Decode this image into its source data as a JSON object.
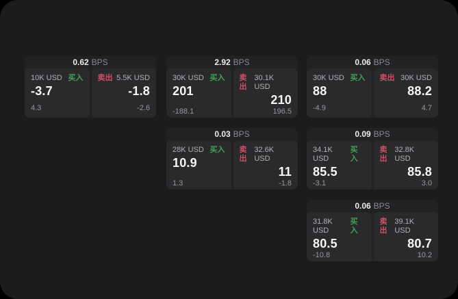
{
  "labels": {
    "bps": "BPS",
    "buy": "买入",
    "sell": "卖出"
  },
  "colors": {
    "outer_background": "#000000",
    "panel_background": "#1c1c1e",
    "card_background": "#222224",
    "tile_background": "#2a2a2c",
    "buy_accent": "#3fa254",
    "sell_accent": "#cf4f63",
    "primary_text": "#f7f7f8",
    "muted_text": "#98989c"
  },
  "cards": [
    {
      "row": 0,
      "col": 0,
      "bps": "0.62",
      "buy": {
        "amount": "10K USD",
        "price": "-3.7",
        "delta": "4.3"
      },
      "sell": {
        "amount": "5.5K USD",
        "price": "-1.8",
        "delta": "-2.6"
      }
    },
    {
      "row": 0,
      "col": 1,
      "bps": "2.92",
      "buy": {
        "amount": "30K USD",
        "price": "201",
        "delta": "-188.1"
      },
      "sell": {
        "amount": "30.1K USD",
        "price": "210",
        "delta": "196.5"
      }
    },
    {
      "row": 0,
      "col": 2,
      "bps": "0.06",
      "buy": {
        "amount": "30K USD",
        "price": "88",
        "delta": "-4.9"
      },
      "sell": {
        "amount": "30K USD",
        "price": "88.2",
        "delta": "4.7"
      }
    },
    {
      "row": 1,
      "col": 1,
      "bps": "0.03",
      "buy": {
        "amount": "28K USD",
        "price": "10.9",
        "delta": "1.3"
      },
      "sell": {
        "amount": "32.6K USD",
        "price": "11",
        "delta": "-1.8"
      }
    },
    {
      "row": 1,
      "col": 2,
      "bps": "0.09",
      "buy": {
        "amount": "34.1K USD",
        "price": "85.5",
        "delta": "-3.1"
      },
      "sell": {
        "amount": "32.8K USD",
        "price": "85.8",
        "delta": "3.0"
      }
    },
    {
      "row": 2,
      "col": 2,
      "bps": "0.06",
      "buy": {
        "amount": "31.8K USD",
        "price": "80.5",
        "delta": "-10.8"
      },
      "sell": {
        "amount": "39.1K USD",
        "price": "80.7",
        "delta": "10.2"
      }
    }
  ]
}
